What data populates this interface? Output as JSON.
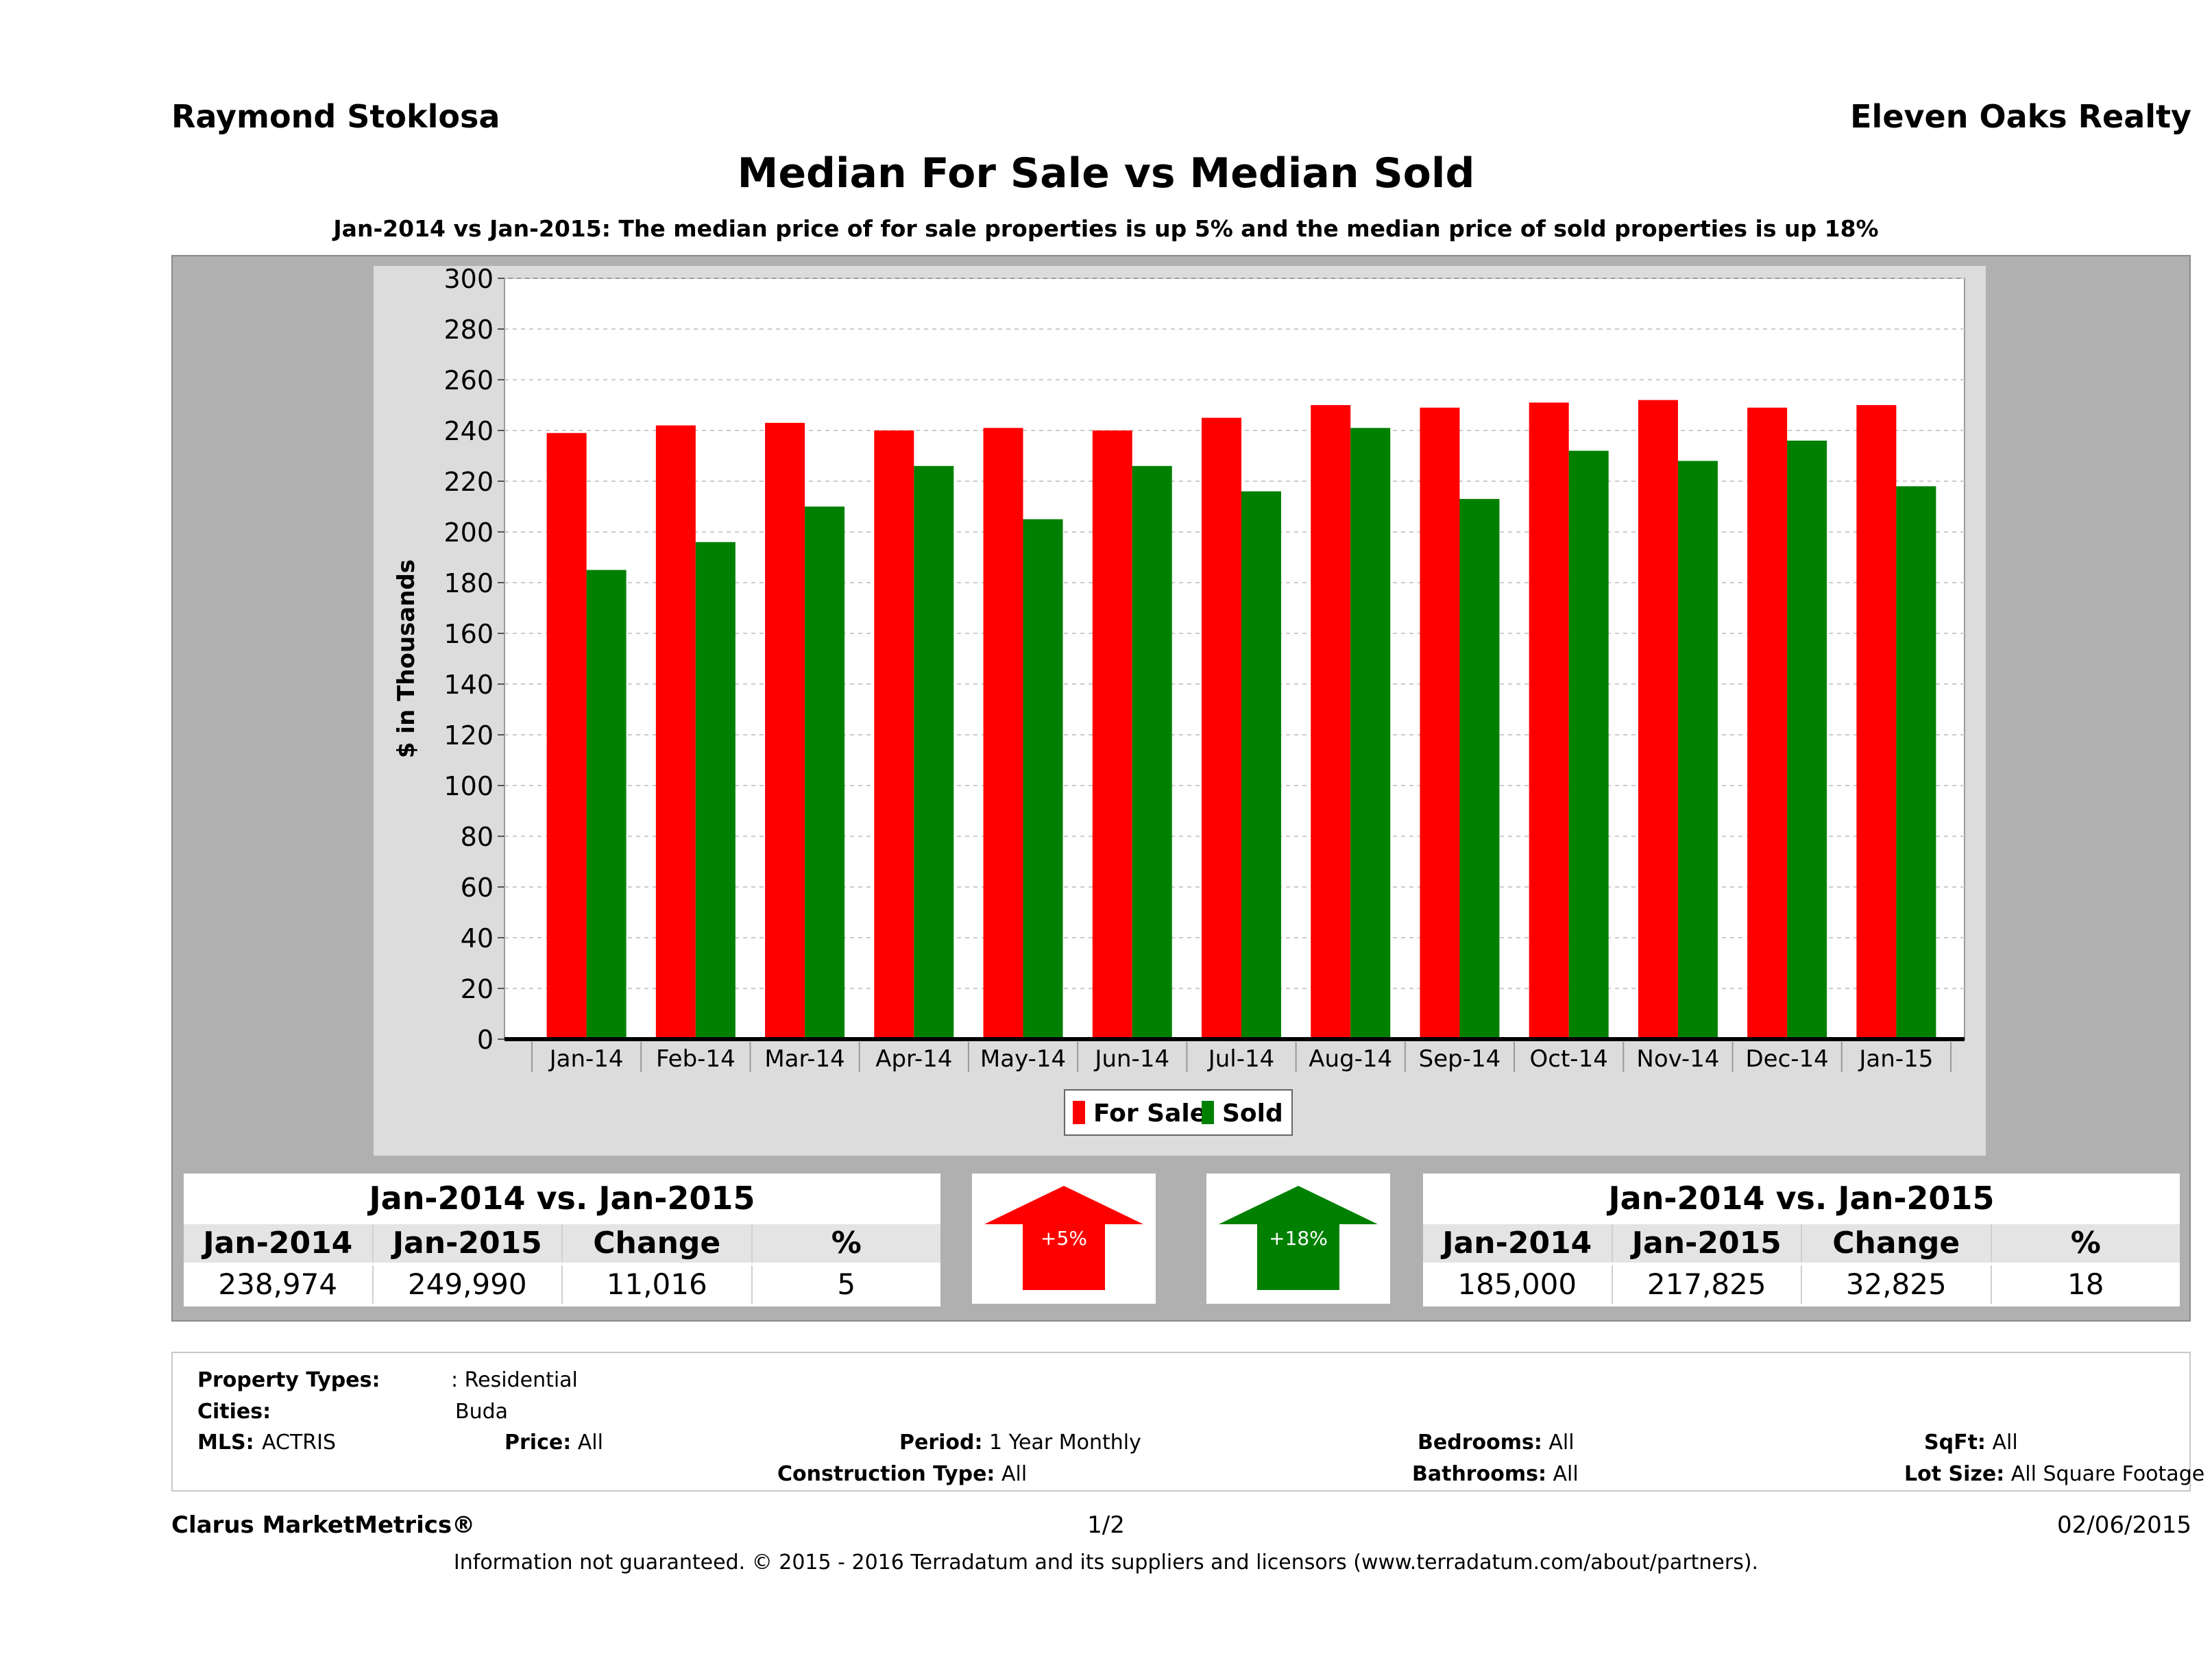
{
  "header": {
    "agent": "Raymond Stoklosa",
    "company": "Eleven Oaks Realty"
  },
  "title": "Median For Sale vs Median Sold",
  "subtitle": "Jan-2014 vs Jan-2015: The median price of for sale properties is up 5% and the median price of sold properties is up 18%",
  "colors": {
    "for_sale": "#ff0000",
    "sold": "#008000",
    "panel": "#b0b0b0",
    "plot_bg": "#ffffff"
  },
  "chart_data": {
    "type": "bar",
    "ylabel": "$ in Thousands",
    "ylim": [
      0,
      300
    ],
    "yticks": [
      0,
      20,
      40,
      60,
      80,
      100,
      120,
      140,
      160,
      180,
      200,
      220,
      240,
      260,
      280,
      300
    ],
    "grid": true,
    "legend_position": "bottom",
    "categories": [
      "Jan-14",
      "Feb-14",
      "Mar-14",
      "Apr-14",
      "May-14",
      "Jun-14",
      "Jul-14",
      "Aug-14",
      "Sep-14",
      "Oct-14",
      "Nov-14",
      "Dec-14",
      "Jan-15"
    ],
    "series": [
      {
        "name": "For Sale",
        "color": "#ff0000",
        "values": [
          239,
          242,
          243,
          240,
          241,
          240,
          245,
          250,
          249,
          251,
          252,
          249,
          250
        ]
      },
      {
        "name": "Sold",
        "color": "#008000",
        "values": [
          185,
          196,
          210,
          226,
          205,
          226,
          216,
          241,
          213,
          232,
          228,
          236,
          218
        ]
      }
    ]
  },
  "for_sale_stats": {
    "heading": "Jan-2014 vs. Jan-2015",
    "col1": "Jan-2014",
    "col2": "Jan-2015",
    "col3": "Change",
    "col4": "%",
    "val1": "238,974",
    "val2": "249,990",
    "val3": "11,016",
    "val4": "5",
    "arrow_label": "+5%"
  },
  "sold_stats": {
    "heading": "Jan-2014 vs. Jan-2015",
    "col1": "Jan-2014",
    "col2": "Jan-2015",
    "col3": "Change",
    "col4": "%",
    "val1": "185,000",
    "val2": "217,825",
    "val3": "32,825",
    "val4": "18",
    "arrow_label": "+18%"
  },
  "criteria": {
    "property_types_label": "Property Types:",
    "property_types_value": ": Residential",
    "cities_label": "Cities:",
    "cities_value": "Buda",
    "mls_label": "MLS:",
    "mls_value": "ACTRIS",
    "price_label": "Price:",
    "price_value": "All",
    "period_label": "Period:",
    "period_value": "1 Year Monthly",
    "construction_label": "Construction Type:",
    "construction_value": "All",
    "bedrooms_label": "Bedrooms:",
    "bedrooms_value": "All",
    "bathrooms_label": "Bathrooms:",
    "bathrooms_value": "All",
    "sqft_label": "SqFt:",
    "sqft_value": "All",
    "lotsize_label": "Lot Size:",
    "lotsize_value": "All Square Footage"
  },
  "footer": {
    "brand": "Clarus MarketMetrics®",
    "page": "1/2",
    "date": "02/06/2015",
    "disclaimer": "Information not guaranteed. © 2015 - 2016 Terradatum and its suppliers and licensors (www.terradatum.com/about/partners)."
  }
}
